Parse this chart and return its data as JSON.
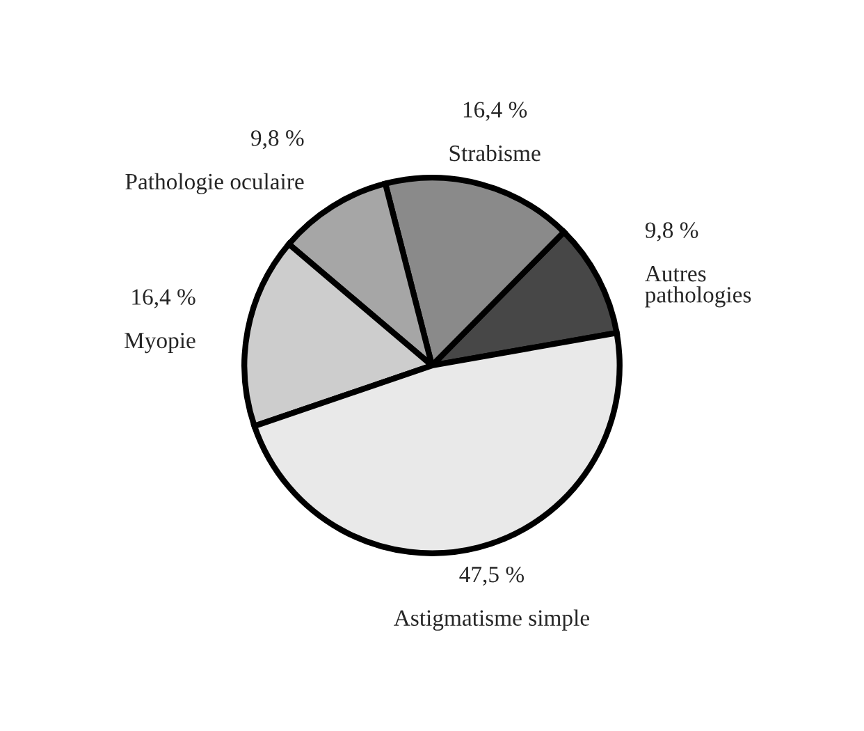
{
  "chart_data": {
    "type": "pie",
    "categories": [
      "Autres\npathologies",
      "Strabisme",
      "Pathologie oculaire",
      "Myopie",
      "Astigmatisme simple"
    ],
    "values": [
      9.8,
      16.4,
      9.8,
      16.4,
      47.5
    ],
    "value_labels": [
      "9,8 %",
      "16,4 %",
      "9,8 %",
      "16,4 %",
      "47,5 %"
    ],
    "colors": [
      "#474747",
      "#8a8a8a",
      "#a6a6a6",
      "#cdcdcd",
      "#e9e9e9"
    ],
    "legend": false
  }
}
